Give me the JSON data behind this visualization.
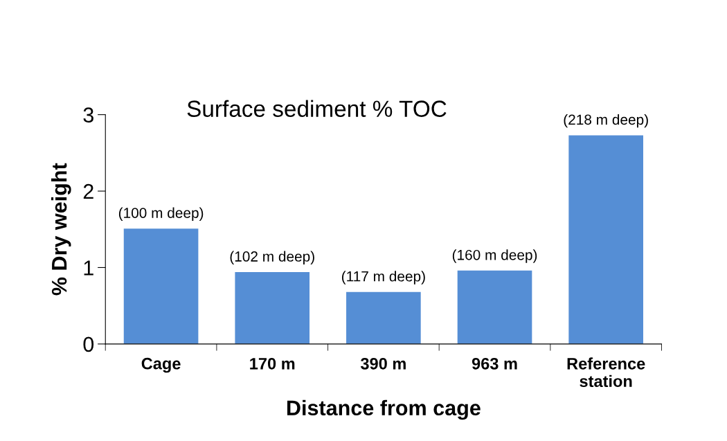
{
  "chart_data": {
    "type": "bar",
    "title": "Surface sediment % TOC",
    "xlabel": "Distance from cage",
    "ylabel": "% Dry weight",
    "categories": [
      "Cage",
      "170 m",
      "390 m",
      "963 m",
      "Reference\nstation"
    ],
    "values": [
      1.51,
      0.94,
      0.68,
      0.96,
      2.73
    ],
    "annotations": [
      {
        "text": "(100 m deep)",
        "x": "Cage",
        "y": 1.51
      },
      {
        "text": "(102 m deep)",
        "x": "170 m",
        "y": 0.94
      },
      {
        "text": "(117 m deep)",
        "x": "390 m",
        "y": 0.68
      },
      {
        "text": "(160 m deep)",
        "x": "963 m",
        "y": 0.96
      },
      {
        "text": "(218 m deep)",
        "x": "Reference\nstation",
        "y": 2.73
      }
    ],
    "color": "#558ed5",
    "ylim": [
      0,
      3
    ],
    "yticks": [
      0,
      1,
      2,
      3
    ],
    "grid": false,
    "legend": false
  }
}
